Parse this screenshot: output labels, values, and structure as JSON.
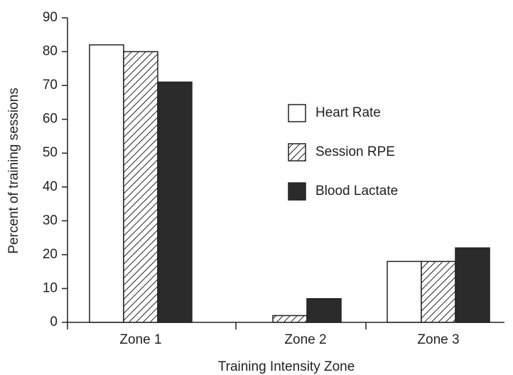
{
  "chart_data": {
    "type": "bar",
    "x_label": "Training Intensity Zone",
    "y_label": "Percent of training sessions",
    "categories": [
      "Zone 1",
      "Zone 2",
      "Zone 3"
    ],
    "series": [
      {
        "name": "Heart Rate",
        "color": "#ffffff",
        "values": [
          82,
          0,
          18
        ]
      },
      {
        "name": "Session RPE",
        "color": "#ffffff",
        "pattern": "diagonal-hatch",
        "values": [
          80,
          2,
          18
        ]
      },
      {
        "name": "Blood Lactate",
        "color": "#2b2b2b",
        "values": [
          71,
          7,
          22
        ]
      }
    ],
    "ylim": [
      0,
      90
    ],
    "yticks": [
      0,
      10,
      20,
      30,
      40,
      50,
      60,
      70,
      80,
      90
    ],
    "legend": "right",
    "grid": false
  }
}
